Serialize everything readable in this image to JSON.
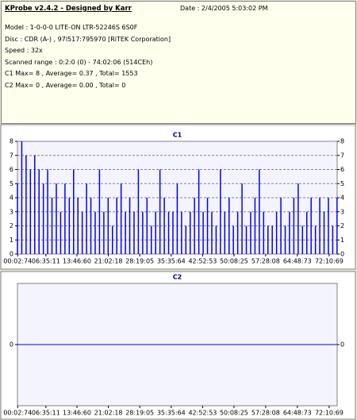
{
  "header": {
    "title": "KProbe v2.4.2 - Designed by Karr",
    "date": "Date : 2/4/2005 5:03:02 PM",
    "lines": [
      "Model : 1-0-0-0 LITE-ON LTR-52246S        6S0F",
      "Disc : CDR (A-) , 97l517:795970 [RiTEK Corporation]",
      "Speed : 32x",
      "Scanned range : 0:2:0 (0) - 74:02:06 (514CEh)",
      "C1 Max= 8 , Average= 0.37 , Total= 1553",
      "C2 Max= 0 , Average= 0.00 , Total= 0"
    ]
  },
  "chart_data": [
    {
      "type": "bar",
      "title": "C1",
      "color": "#0000ff",
      "grid": true,
      "xlim": [
        0,
        74.03
      ],
      "ylim": [
        0,
        8
      ],
      "yticks": [
        0,
        1,
        2,
        3,
        4,
        5,
        6,
        7,
        8
      ],
      "xticks": [
        {
          "value": 0.046,
          "label": "00:02:74"
        },
        {
          "value": 6.586,
          "label": "06:35:11"
        },
        {
          "value": 13.78,
          "label": "13:46:60"
        },
        {
          "value": 21.04,
          "label": "21:02:18"
        },
        {
          "value": 28.32,
          "label": "28:19:05"
        },
        {
          "value": 35.6,
          "label": "35:35:64"
        },
        {
          "value": 42.88,
          "label": "42:52:53"
        },
        {
          "value": 50.14,
          "label": "50:08:25"
        },
        {
          "value": 57.47,
          "label": "57:28:08"
        },
        {
          "value": 64.81,
          "label": "64:48:73"
        },
        {
          "value": 72.18,
          "label": "72:10:69"
        }
      ],
      "x": [
        0,
        1,
        2,
        3,
        4,
        5,
        6,
        7,
        8,
        9,
        10,
        11,
        12,
        13,
        14,
        15,
        16,
        17,
        18,
        19,
        20,
        21,
        22,
        23,
        24,
        25,
        26,
        27,
        28,
        29,
        30,
        31,
        32,
        33,
        34,
        35,
        36,
        37,
        38,
        39,
        40,
        41,
        42,
        43,
        44,
        45,
        46,
        47,
        48,
        49,
        50,
        51,
        52,
        53,
        54,
        55,
        56,
        57,
        58,
        59,
        60,
        61,
        62,
        63,
        64,
        65,
        66,
        67,
        68,
        69,
        70,
        71,
        72,
        73,
        74
      ],
      "values": [
        5,
        8,
        7,
        6,
        7,
        6,
        5,
        6,
        4,
        5,
        3,
        5,
        4,
        6,
        4,
        3,
        5,
        4,
        3,
        6,
        3,
        4,
        2,
        4,
        5,
        3,
        4,
        3,
        6,
        3,
        4,
        2,
        3,
        6,
        4,
        3,
        3,
        5,
        3,
        2,
        3,
        4,
        6,
        3,
        4,
        3,
        2,
        6,
        3,
        4,
        2,
        3,
        5,
        2,
        3,
        4,
        6,
        3,
        2,
        2,
        3,
        4,
        2,
        3,
        4,
        5,
        2,
        3,
        4,
        2,
        4,
        3,
        4,
        2,
        4
      ]
    },
    {
      "type": "line",
      "title": "C2",
      "color": "#0000ff",
      "grid": false,
      "xlim": [
        0,
        74.03
      ],
      "ylim": [
        -1,
        1
      ],
      "yticks": [
        0
      ],
      "xticks": [
        {
          "value": 0.046,
          "label": "00:02:74"
        },
        {
          "value": 6.586,
          "label": "06:35:11"
        },
        {
          "value": 13.78,
          "label": "13:46:60"
        },
        {
          "value": 21.04,
          "label": "21:02:18"
        },
        {
          "value": 28.32,
          "label": "28:19:05"
        },
        {
          "value": 35.6,
          "label": "35:35:64"
        },
        {
          "value": 42.88,
          "label": "42:52:53"
        },
        {
          "value": 50.14,
          "label": "50:08:25"
        },
        {
          "value": 57.47,
          "label": "57:28:08"
        },
        {
          "value": 64.81,
          "label": "64:48:73"
        },
        {
          "value": 72.18,
          "label": "72:10:69"
        }
      ],
      "x": [
        0,
        74
      ],
      "values": [
        0,
        0
      ]
    }
  ]
}
